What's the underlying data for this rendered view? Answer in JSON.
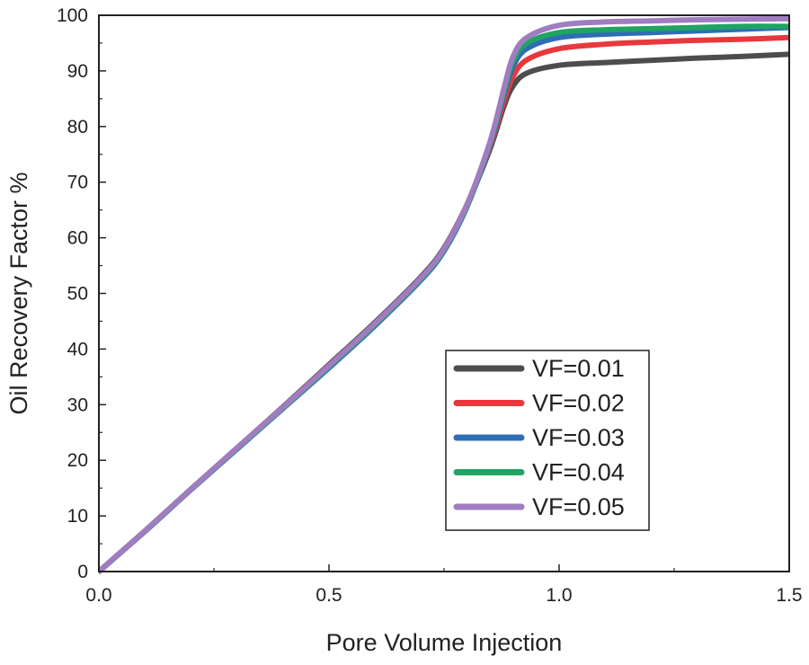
{
  "chart_data": {
    "type": "line",
    "title": "",
    "xlabel": "Pore Volume Injection",
    "ylabel": "Oil Recovery Factor %",
    "xlim": [
      0,
      1.5
    ],
    "ylim": [
      0,
      100
    ],
    "x_ticks": [
      0,
      0.5,
      1.0,
      1.5
    ],
    "x_tick_labels": [
      "0.0",
      "0.5",
      "1.0",
      "1.5"
    ],
    "y_ticks": [
      0,
      10,
      20,
      30,
      40,
      50,
      60,
      70,
      80,
      90,
      100
    ],
    "y_tick_labels": [
      "0",
      "10",
      "20",
      "30",
      "40",
      "50",
      "60",
      "70",
      "80",
      "90",
      "100"
    ],
    "grid": false,
    "legend_position": "bottom-right",
    "series": [
      {
        "name": "VF=0.01",
        "color": "#4d4d4d",
        "points": [
          [
            0,
            0
          ],
          [
            0.1,
            7.3
          ],
          [
            0.2,
            14.8
          ],
          [
            0.3,
            22.2
          ],
          [
            0.4,
            29.6
          ],
          [
            0.5,
            37.2
          ],
          [
            0.6,
            44.8
          ],
          [
            0.7,
            53.0
          ],
          [
            0.75,
            58.2
          ],
          [
            0.8,
            66.0
          ],
          [
            0.85,
            76.0
          ],
          [
            0.88,
            83.6
          ],
          [
            0.9,
            87.3
          ],
          [
            0.93,
            89.6
          ],
          [
            1.0,
            91.0
          ],
          [
            1.1,
            91.5
          ],
          [
            1.2,
            91.9
          ],
          [
            1.3,
            92.3
          ],
          [
            1.4,
            92.6
          ],
          [
            1.5,
            93.0
          ]
        ]
      },
      {
        "name": "VF=0.02",
        "color": "#e8383d",
        "points": [
          [
            0,
            0
          ],
          [
            0.1,
            7.3
          ],
          [
            0.2,
            14.8
          ],
          [
            0.3,
            22.2
          ],
          [
            0.4,
            29.5
          ],
          [
            0.5,
            37.0
          ],
          [
            0.6,
            44.6
          ],
          [
            0.7,
            52.8
          ],
          [
            0.75,
            58.0
          ],
          [
            0.8,
            65.9
          ],
          [
            0.85,
            76.5
          ],
          [
            0.88,
            84.5
          ],
          [
            0.9,
            89.0
          ],
          [
            0.93,
            92.0
          ],
          [
            1.0,
            94.0
          ],
          [
            1.1,
            94.8
          ],
          [
            1.2,
            95.2
          ],
          [
            1.3,
            95.5
          ],
          [
            1.4,
            95.7
          ],
          [
            1.5,
            96.0
          ]
        ]
      },
      {
        "name": "VF=0.03",
        "color": "#2f6db5",
        "points": [
          [
            0,
            0
          ],
          [
            0.1,
            7.2
          ],
          [
            0.2,
            14.7
          ],
          [
            0.3,
            22.0
          ],
          [
            0.4,
            29.3
          ],
          [
            0.5,
            36.6
          ],
          [
            0.6,
            44.2
          ],
          [
            0.7,
            52.4
          ],
          [
            0.75,
            57.6
          ],
          [
            0.8,
            65.6
          ],
          [
            0.85,
            76.8
          ],
          [
            0.88,
            85.6
          ],
          [
            0.9,
            90.8
          ],
          [
            0.93,
            94.0
          ],
          [
            1.0,
            96.0
          ],
          [
            1.1,
            96.6
          ],
          [
            1.2,
            96.9
          ],
          [
            1.3,
            97.2
          ],
          [
            1.4,
            97.5
          ],
          [
            1.5,
            97.8
          ]
        ]
      },
      {
        "name": "VF=0.04",
        "color": "#1fa463",
        "points": [
          [
            0,
            0
          ],
          [
            0.1,
            7.3
          ],
          [
            0.2,
            14.8
          ],
          [
            0.3,
            22.1
          ],
          [
            0.4,
            29.4
          ],
          [
            0.5,
            36.8
          ],
          [
            0.6,
            44.4
          ],
          [
            0.7,
            52.6
          ],
          [
            0.75,
            57.8
          ],
          [
            0.8,
            65.8
          ],
          [
            0.85,
            77.0
          ],
          [
            0.88,
            86.2
          ],
          [
            0.9,
            91.8
          ],
          [
            0.93,
            95.0
          ],
          [
            1.0,
            96.9
          ],
          [
            1.1,
            97.4
          ],
          [
            1.2,
            97.6
          ],
          [
            1.3,
            97.8
          ],
          [
            1.4,
            98.0
          ],
          [
            1.5,
            98.0
          ]
        ]
      },
      {
        "name": "VF=0.05",
        "color": "#a07cc0",
        "points": [
          [
            0,
            0
          ],
          [
            0.1,
            7.3
          ],
          [
            0.2,
            14.8
          ],
          [
            0.3,
            22.2
          ],
          [
            0.4,
            29.5
          ],
          [
            0.5,
            37.0
          ],
          [
            0.6,
            44.6
          ],
          [
            0.7,
            52.8
          ],
          [
            0.75,
            58.0
          ],
          [
            0.8,
            66.0
          ],
          [
            0.85,
            77.3
          ],
          [
            0.88,
            86.8
          ],
          [
            0.9,
            92.6
          ],
          [
            0.93,
            96.0
          ],
          [
            1.0,
            98.2
          ],
          [
            1.1,
            98.8
          ],
          [
            1.2,
            99.0
          ],
          [
            1.3,
            99.2
          ],
          [
            1.4,
            99.3
          ],
          [
            1.5,
            99.4
          ]
        ]
      }
    ]
  }
}
